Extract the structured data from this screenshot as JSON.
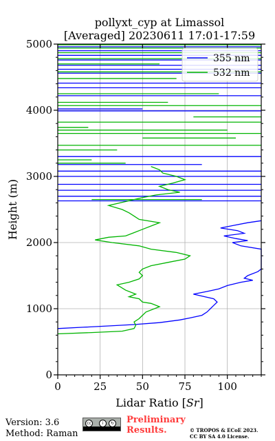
{
  "chart_data": {
    "type": "line",
    "title": "pollyxt_cyp at Limassol",
    "subtitle": "[Averaged] 20230611 17:01-17:59",
    "xlabel": "Lidar Ratio [Sr]",
    "ylabel": "Height (m)",
    "xlim": [
      0,
      120
    ],
    "ylim": [
      0,
      5000
    ],
    "x_ticks": [
      0,
      25,
      50,
      75,
      100
    ],
    "y_ticks": [
      0,
      1000,
      2000,
      3000,
      4000,
      5000
    ],
    "grid": true,
    "legend_position": "top-right",
    "series": [
      {
        "name": "355 nm",
        "color": "#0000ff",
        "points": [
          [
            0,
            700
          ],
          [
            15,
            720
          ],
          [
            30,
            740
          ],
          [
            45,
            760
          ],
          [
            60,
            790
          ],
          [
            72,
            830
          ],
          [
            78,
            860
          ],
          [
            85,
            900
          ],
          [
            88,
            950
          ],
          [
            90,
            1000
          ],
          [
            92,
            1050
          ],
          [
            94,
            1100
          ],
          [
            92,
            1150
          ],
          [
            80,
            1220
          ],
          [
            88,
            1260
          ],
          [
            95,
            1300
          ],
          [
            100,
            1350
          ],
          [
            108,
            1400
          ],
          [
            115,
            1430
          ],
          [
            110,
            1460
          ],
          [
            112,
            1500
          ],
          [
            118,
            1560
          ],
          [
            120,
            1600
          ],
          [
            120,
            1900
          ],
          [
            108,
            1950
          ],
          [
            103,
            2000
          ],
          [
            112,
            2030
          ],
          [
            105,
            2060
          ],
          [
            98,
            2100
          ],
          [
            110,
            2140
          ],
          [
            106,
            2180
          ],
          [
            96,
            2220
          ],
          [
            104,
            2260
          ],
          [
            112,
            2300
          ],
          [
            120,
            2330
          ]
        ],
        "hlines": [
          {
            "y": 2630,
            "x0": 0,
            "x1": 120
          },
          {
            "y": 2700,
            "x0": 0,
            "x1": 120
          },
          {
            "y": 2790,
            "x0": 0,
            "x1": 120
          },
          {
            "y": 2880,
            "x0": 0,
            "x1": 120
          },
          {
            "y": 3000,
            "x0": 0,
            "x1": 120
          },
          {
            "y": 3080,
            "x0": 0,
            "x1": 120
          },
          {
            "y": 3180,
            "x0": 0,
            "x1": 85
          },
          {
            "y": 3300,
            "x0": 0,
            "x1": 120
          },
          {
            "y": 3990,
            "x0": 0,
            "x1": 120
          },
          {
            "y": 4020,
            "x0": 0,
            "x1": 50
          },
          {
            "y": 4220,
            "x0": 0,
            "x1": 120
          },
          {
            "y": 4340,
            "x0": 0,
            "x1": 120
          },
          {
            "y": 4410,
            "x0": 0,
            "x1": 120
          },
          {
            "y": 4560,
            "x0": 0,
            "x1": 120
          },
          {
            "y": 4620,
            "x0": 0,
            "x1": 120
          },
          {
            "y": 4680,
            "x0": 0,
            "x1": 120
          },
          {
            "y": 4760,
            "x0": 0,
            "x1": 120
          },
          {
            "y": 4830,
            "x0": 0,
            "x1": 120
          },
          {
            "y": 4900,
            "x0": 0,
            "x1": 120
          },
          {
            "y": 4960,
            "x0": 0,
            "x1": 120
          }
        ]
      },
      {
        "name": "532 nm",
        "color": "#00b400",
        "points": [
          [
            0,
            620
          ],
          [
            20,
            640
          ],
          [
            38,
            660
          ],
          [
            45,
            700
          ],
          [
            46,
            750
          ],
          [
            45,
            800
          ],
          [
            48,
            850
          ],
          [
            50,
            900
          ],
          [
            52,
            950
          ],
          [
            60,
            1030
          ],
          [
            55,
            1080
          ],
          [
            50,
            1100
          ],
          [
            48,
            1150
          ],
          [
            42,
            1180
          ],
          [
            46,
            1220
          ],
          [
            40,
            1280
          ],
          [
            35,
            1360
          ],
          [
            42,
            1400
          ],
          [
            48,
            1450
          ],
          [
            50,
            1500
          ],
          [
            48,
            1550
          ],
          [
            50,
            1600
          ],
          [
            55,
            1650
          ],
          [
            65,
            1700
          ],
          [
            75,
            1750
          ],
          [
            78,
            1800
          ],
          [
            70,
            1850
          ],
          [
            55,
            1900
          ],
          [
            48,
            1950
          ],
          [
            32,
            2000
          ],
          [
            22,
            2040
          ],
          [
            30,
            2080
          ],
          [
            40,
            2100
          ],
          [
            45,
            2150
          ],
          [
            50,
            2200
          ],
          [
            55,
            2250
          ],
          [
            60,
            2300
          ],
          [
            48,
            2350
          ],
          [
            45,
            2400
          ],
          [
            42,
            2450
          ],
          [
            38,
            2500
          ],
          [
            30,
            2560
          ],
          [
            40,
            2620
          ],
          [
            50,
            2680
          ],
          [
            58,
            2720
          ],
          [
            72,
            2760
          ],
          [
            65,
            2800
          ],
          [
            60,
            2850
          ],
          [
            68,
            2900
          ],
          [
            75,
            2950
          ],
          [
            70,
            3000
          ],
          [
            62,
            3050
          ],
          [
            60,
            3100
          ],
          [
            55,
            3150
          ]
        ],
        "hlines": [
          {
            "y": 2650,
            "x0": 20,
            "x1": 85
          },
          {
            "y": 3200,
            "x0": 0,
            "x1": 40
          },
          {
            "y": 3250,
            "x0": 0,
            "x1": 20
          },
          {
            "y": 3400,
            "x0": 0,
            "x1": 35
          },
          {
            "y": 3470,
            "x0": 0,
            "x1": 120
          },
          {
            "y": 3580,
            "x0": 50,
            "x1": 105
          },
          {
            "y": 3650,
            "x0": 0,
            "x1": 120
          },
          {
            "y": 3700,
            "x0": 0,
            "x1": 100
          },
          {
            "y": 3740,
            "x0": 0,
            "x1": 18
          },
          {
            "y": 3820,
            "x0": 0,
            "x1": 120
          },
          {
            "y": 3900,
            "x0": 80,
            "x1": 120
          },
          {
            "y": 4070,
            "x0": 0,
            "x1": 120
          },
          {
            "y": 4120,
            "x0": 0,
            "x1": 65
          },
          {
            "y": 4250,
            "x0": 0,
            "x1": 95
          },
          {
            "y": 4480,
            "x0": 0,
            "x1": 70
          },
          {
            "y": 4580,
            "x0": 0,
            "x1": 120
          },
          {
            "y": 4700,
            "x0": 0,
            "x1": 60
          },
          {
            "y": 4780,
            "x0": 0,
            "x1": 120
          },
          {
            "y": 4870,
            "x0": 0,
            "x1": 120
          },
          {
            "y": 4940,
            "x0": 0,
            "x1": 120
          },
          {
            "y": 4990,
            "x0": 0,
            "x1": 120
          }
        ]
      }
    ]
  },
  "footer": {
    "version": "Version: 3.6",
    "method": "Method: Raman",
    "preliminary_line1": "Preliminary",
    "preliminary_line2": "Results.",
    "copyright_line1": "© TROPOS & ECoE 2023.",
    "copyright_line2": "CC BY SA 4.0 License.",
    "license_badge": "CC BY SA"
  }
}
